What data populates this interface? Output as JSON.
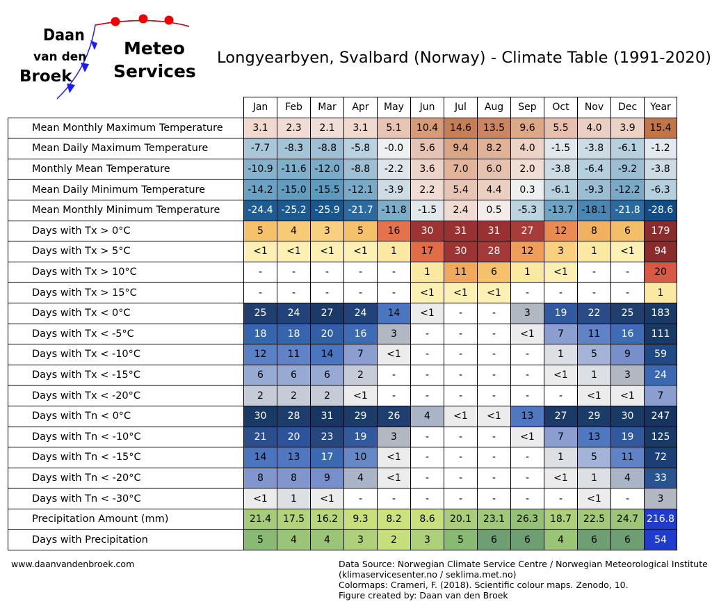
{
  "logo": {
    "line1": "Daan",
    "line2": "van den",
    "line3": "Broek",
    "brand1": "Meteo",
    "brand2": "Services"
  },
  "title": "Longyearbyen, Svalbard (Norway) - Climate Table (1991-2020)",
  "columns": [
    "Jan",
    "Feb",
    "Mar",
    "Apr",
    "May",
    "Jun",
    "Jul",
    "Aug",
    "Sep",
    "Oct",
    "Nov",
    "Dec",
    "Year"
  ],
  "rows": [
    {
      "label": "Mean Monthly Maximum Temperature",
      "values": [
        "3.1",
        "2.3",
        "2.1",
        "3.1",
        "5.1",
        "10.4",
        "14.6",
        "13.5",
        "9.6",
        "5.5",
        "4.0",
        "3.9",
        "15.4"
      ],
      "colors": [
        "#f1d9d0",
        "#f0dcd5",
        "#efded8",
        "#f1d9d0",
        "#e8c4b2",
        "#d89a77",
        "#c77d55",
        "#cc8560",
        "#dca886",
        "#e6c0ad",
        "#eccfc3",
        "#ecd1c5",
        "#c27648"
      ]
    },
    {
      "label": "Mean Daily Maximum Temperature",
      "values": [
        "-7.7",
        "-8.3",
        "-8.8",
        "-5.8",
        "-0.0",
        "5.6",
        "9.4",
        "8.2",
        "4.0",
        "-1.5",
        "-3.8",
        "-6.1",
        "-1.2"
      ],
      "colors": [
        "#a9c7d8",
        "#a3c3d6",
        "#9fc0d4",
        "#b9d2df",
        "#eef0f1",
        "#e6c3b2",
        "#dba685",
        "#e0b296",
        "#ecd3c6",
        "#e1e8ec",
        "#cddbe4",
        "#b6d0de",
        "#e3e9ee"
      ]
    },
    {
      "label": "Monthly Mean Temperature",
      "values": [
        "-10.9",
        "-11.6",
        "-12.0",
        "-8.8",
        "-2.2",
        "3.6",
        "7.0",
        "6.0",
        "2.0",
        "-3.8",
        "-6.4",
        "-9.2",
        "-3.8"
      ],
      "colors": [
        "#85b3cd",
        "#7fafcb",
        "#7aacc9",
        "#9fc0d4",
        "#dde5eb",
        "#edd4c8",
        "#e2b59b",
        "#e6c1ae",
        "#f0ddd4",
        "#cddbe4",
        "#b4cfdd",
        "#9cbed3",
        "#cddbe4"
      ]
    },
    {
      "label": "Mean Daily Minimum Temperature",
      "values": [
        "-14.2",
        "-15.0",
        "-15.5",
        "-12.1",
        "-3.9",
        "2.2",
        "5.4",
        "4.4",
        "0.3",
        "-6.1",
        "-9.3",
        "-12.2",
        "-6.3"
      ],
      "colors": [
        "#6aa2c3",
        "#629dc0",
        "#5e9abe",
        "#79abc8",
        "#ccdbe4",
        "#f0dcd3",
        "#e7c5b4",
        "#ebcfc0",
        "#eeefef",
        "#b6d0de",
        "#9bbed2",
        "#78aac8",
        "#b4cfdd"
      ]
    },
    {
      "label": "Mean Monthly Minimum Temperature",
      "values": [
        "-24.4",
        "-25.2",
        "-25.9",
        "-21.7",
        "-11.8",
        "-1.5",
        "2.4",
        "0.5",
        "-5.3",
        "-13.7",
        "-18.1",
        "-21.8",
        "-28.6"
      ],
      "colors": [
        "#1d5d93",
        "#1a5a90",
        "#18578d",
        "#2a6a9f",
        "#7daec9",
        "#e1e8ec",
        "#f0dbd2",
        "#f2ecea",
        "#bcd4e0",
        "#6ea5c5",
        "#4886b3",
        "#296a9f",
        "#0f4d84"
      ]
    },
    {
      "label": "Days with Tx > 0°C",
      "values": [
        "5",
        "4",
        "3",
        "5",
        "16",
        "30",
        "31",
        "31",
        "27",
        "12",
        "8",
        "6",
        "179"
      ],
      "colors": [
        "#f5c26b",
        "#f7ca76",
        "#f8d07f",
        "#f5c26b",
        "#e4724a",
        "#9c3434",
        "#983232",
        "#983232",
        "#a83c38",
        "#e98b52",
        "#f1b160",
        "#f4bd68",
        "#8a2c2c"
      ]
    },
    {
      "label": "Days with Tx > 5°C",
      "values": [
        "<1",
        "<1",
        "<1",
        "<1",
        "1",
        "17",
        "30",
        "28",
        "12",
        "3",
        "1",
        "<1",
        "94"
      ],
      "colors": [
        "#fcf0b2",
        "#fcf0b2",
        "#fcf0b2",
        "#fcf0b2",
        "#fbe9a2",
        "#e26c46",
        "#9c3434",
        "#a43a37",
        "#ef9d58",
        "#f8d07f",
        "#fbe9a2",
        "#fcf0b2",
        "#8a2c2c"
      ]
    },
    {
      "label": "Days with Tx > 10°C",
      "values": [
        "-",
        "-",
        "-",
        "-",
        "-",
        "1",
        "11",
        "6",
        "1",
        "<1",
        "-",
        "-",
        "20"
      ],
      "colors": [
        "#ffffff",
        "#ffffff",
        "#ffffff",
        "#ffffff",
        "#ffffff",
        "#fbe9a2",
        "#f1a95d",
        "#f5c26b",
        "#fbe9a2",
        "#fcf0b2",
        "#ffffff",
        "#ffffff",
        "#d85a44"
      ]
    },
    {
      "label": "Days with Tx > 15°C",
      "values": [
        "-",
        "-",
        "-",
        "-",
        "-",
        "<1",
        "<1",
        "<1",
        "-",
        "-",
        "-",
        "-",
        "1"
      ],
      "colors": [
        "#ffffff",
        "#ffffff",
        "#ffffff",
        "#ffffff",
        "#ffffff",
        "#fcf0b2",
        "#fcf0b2",
        "#fcf0b2",
        "#ffffff",
        "#ffffff",
        "#ffffff",
        "#ffffff",
        "#fbe9a2"
      ]
    },
    {
      "label": "Days with Tx < 0°C",
      "values": [
        "25",
        "24",
        "27",
        "24",
        "14",
        "<1",
        "-",
        "-",
        "3",
        "19",
        "22",
        "25",
        "183"
      ],
      "colors": [
        "#213f6e",
        "#22437a",
        "#1c3a68",
        "#22437a",
        "#4a76bf",
        "#ececec",
        "#ffffff",
        "#ffffff",
        "#b2b8c2",
        "#315a9e",
        "#2a4c86",
        "#213f6e",
        "#1a3a66"
      ]
    },
    {
      "label": "Days with Tx < -5°C",
      "values": [
        "18",
        "18",
        "20",
        "16",
        "3",
        "-",
        "-",
        "-",
        "<1",
        "7",
        "11",
        "16",
        "111"
      ],
      "colors": [
        "#3565ad",
        "#3565ad",
        "#305fa6",
        "#3d6cb5",
        "#b2b8c2",
        "#ffffff",
        "#ffffff",
        "#ffffff",
        "#ececec",
        "#8a9ed0",
        "#5f83c6",
        "#3d6cb5",
        "#1a3a66"
      ]
    },
    {
      "label": "Days with Tx < -10°C",
      "values": [
        "12",
        "11",
        "14",
        "7",
        "<1",
        "-",
        "-",
        "-",
        "-",
        "1",
        "5",
        "9",
        "59"
      ],
      "colors": [
        "#5a80c6",
        "#5f83c6",
        "#4a76bf",
        "#8a9ed0",
        "#ececec",
        "#ffffff",
        "#ffffff",
        "#ffffff",
        "#ffffff",
        "#dcdfe3",
        "#a4b3d8",
        "#7790cb",
        "#1f4a86"
      ]
    },
    {
      "label": "Days with Tx < -15°C",
      "values": [
        "6",
        "6",
        "6",
        "2",
        "-",
        "-",
        "-",
        "-",
        "-",
        "<1",
        "1",
        "3",
        "24"
      ],
      "colors": [
        "#97aad4",
        "#97aad4",
        "#97aad4",
        "#c5ccd8",
        "#ffffff",
        "#ffffff",
        "#ffffff",
        "#ffffff",
        "#ffffff",
        "#ececec",
        "#dcdfe3",
        "#b2b8c2",
        "#3a68b1"
      ]
    },
    {
      "label": "Days with Tx < -20°C",
      "values": [
        "2",
        "2",
        "2",
        "<1",
        "-",
        "-",
        "-",
        "-",
        "-",
        "-",
        "<1",
        "<1",
        "7"
      ],
      "colors": [
        "#c5ccd8",
        "#c5ccd8",
        "#c5ccd8",
        "#ececec",
        "#ffffff",
        "#ffffff",
        "#ffffff",
        "#ffffff",
        "#ffffff",
        "#ffffff",
        "#ececec",
        "#ececec",
        "#8a9ed0"
      ]
    },
    {
      "label": "Days with Tn < 0°C",
      "values": [
        "30",
        "28",
        "31",
        "29",
        "26",
        "4",
        "<1",
        "<1",
        "13",
        "27",
        "29",
        "30",
        "247"
      ],
      "colors": [
        "#1a3a66",
        "#1d3d6c",
        "#173662",
        "#1b3b69",
        "#1f3f70",
        "#a9b4c6",
        "#ececec",
        "#ececec",
        "#4f78c1",
        "#1c3a68",
        "#1b3b69",
        "#1a3a66",
        "#163460"
      ]
    },
    {
      "label": "Days with Tn < -10°C",
      "values": [
        "21",
        "20",
        "23",
        "19",
        "3",
        "-",
        "-",
        "-",
        "<1",
        "7",
        "13",
        "19",
        "125"
      ],
      "colors": [
        "#2a4f8c",
        "#2d539a",
        "#26467e",
        "#315a9e",
        "#b2b8c2",
        "#ffffff",
        "#ffffff",
        "#ffffff",
        "#ececec",
        "#8a9ed0",
        "#4f78c1",
        "#315a9e",
        "#1a3a66"
      ]
    },
    {
      "label": "Days with Tn < -15°C",
      "values": [
        "14",
        "13",
        "17",
        "10",
        "<1",
        "-",
        "-",
        "-",
        "-",
        "1",
        "5",
        "11",
        "72"
      ],
      "colors": [
        "#4a76bf",
        "#4f78c1",
        "#3a68b1",
        "#6788c7",
        "#ececec",
        "#ffffff",
        "#ffffff",
        "#ffffff",
        "#ffffff",
        "#dcdfe3",
        "#a4b3d8",
        "#5f83c6",
        "#1c3f78"
      ]
    },
    {
      "label": "Days with Tn < -20°C",
      "values": [
        "8",
        "8",
        "9",
        "4",
        "<1",
        "-",
        "-",
        "-",
        "-",
        "<1",
        "1",
        "4",
        "33"
      ],
      "colors": [
        "#8196cd",
        "#8196cd",
        "#7790cb",
        "#a9b4c6",
        "#ececec",
        "#ffffff",
        "#ffffff",
        "#ffffff",
        "#ffffff",
        "#ececec",
        "#dcdfe3",
        "#a9b4c6",
        "#2a548f"
      ]
    },
    {
      "label": "Days with Tn < -30°C",
      "values": [
        "<1",
        "1",
        "<1",
        "-",
        "-",
        "-",
        "-",
        "-",
        "-",
        "-",
        "<1",
        "-",
        "3"
      ],
      "colors": [
        "#ececec",
        "#dcdfe3",
        "#ececec",
        "#ffffff",
        "#ffffff",
        "#ffffff",
        "#ffffff",
        "#ffffff",
        "#ffffff",
        "#ffffff",
        "#ececec",
        "#ffffff",
        "#b2b8c2"
      ]
    },
    {
      "label": "Precipitation Amount (mm)",
      "values": [
        "21.4",
        "17.5",
        "16.2",
        "9.3",
        "8.2",
        "8.6",
        "20.1",
        "23.1",
        "26.3",
        "18.7",
        "22.5",
        "24.7",
        "216.8"
      ],
      "colors": [
        "#a7cc79",
        "#b3d37a",
        "#b8d67b",
        "#c8e07c",
        "#cbe27d",
        "#c9e17d",
        "#aacd79",
        "#a1c878",
        "#95c174",
        "#aed07a",
        "#a3c978",
        "#9cc577",
        "#1f3ccc"
      ]
    },
    {
      "label": "Days with Precipitation",
      "values": [
        "5",
        "4",
        "4",
        "3",
        "2",
        "3",
        "5",
        "6",
        "6",
        "4",
        "6",
        "6",
        "54"
      ],
      "colors": [
        "#88ba74",
        "#9ac577",
        "#9ac577",
        "#aed07a",
        "#c6df7c",
        "#aed07a",
        "#88ba74",
        "#6e9f73",
        "#6e9f73",
        "#9ac577",
        "#6e9f73",
        "#6e9f73",
        "#1f3ccc"
      ]
    }
  ],
  "footer": {
    "website": "www.daanvandenbroek.com",
    "source1": "Data Source: Norwegian Climate Service Centre / Norwegian Meteorological Institute",
    "source2": "(klimaservicesenter.no / seklima.met.no)",
    "source3": "Colormaps: Crameri, F. (2018). Scientific colour maps. Zenodo, 10.",
    "source4": "Figure created by: Daan van den Broek"
  }
}
